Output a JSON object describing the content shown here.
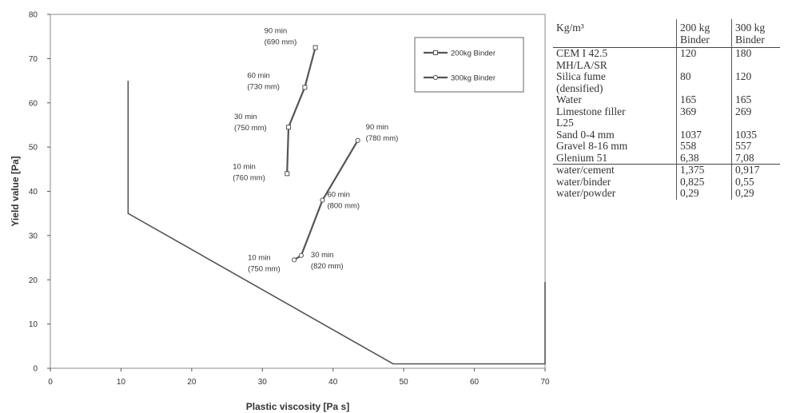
{
  "chart_data": {
    "type": "scatter",
    "xlabel": "Plastic viscosity [Pa s]",
    "ylabel": "Yield value [Pa]",
    "xlim": [
      0,
      70
    ],
    "ylim": [
      0,
      80
    ],
    "x_ticks": [
      "0",
      "10",
      "20",
      "30",
      "40",
      "50",
      "60",
      "70"
    ],
    "y_ticks": [
      "0",
      "10",
      "20",
      "30",
      "40",
      "50",
      "60",
      "70",
      "80"
    ],
    "grid": false,
    "legend_position": "top-right",
    "region_polygon": [
      [
        11,
        65
      ],
      [
        11,
        35
      ],
      [
        48.5,
        1
      ],
      [
        70,
        1
      ],
      [
        70,
        19.5
      ]
    ],
    "series": [
      {
        "name": "200kg Binder",
        "points": [
          {
            "x": 33.5,
            "y": 44,
            "label": [
              "10 min",
              "(760 mm)"
            ]
          },
          {
            "x": 33.7,
            "y": 54.5,
            "label": [
              "30 min",
              "(750 mm)"
            ]
          },
          {
            "x": 36,
            "y": 63.5,
            "label": [
              "60 min",
              "(730 mm)"
            ]
          },
          {
            "x": 37.5,
            "y": 72.5,
            "label": [
              "90 min",
              "(690 mm)"
            ]
          }
        ]
      },
      {
        "name": "300kg Binder",
        "points": [
          {
            "x": 34.5,
            "y": 24.5,
            "label": [
              "10 min",
              "(750 mm)"
            ]
          },
          {
            "x": 35.5,
            "y": 25.5,
            "label": [
              "30 min",
              "(820 mm)"
            ]
          },
          {
            "x": 38.5,
            "y": 38,
            "label": [
              "60 min",
              "(800 mm)"
            ]
          },
          {
            "x": 43.5,
            "y": 51.5,
            "label": [
              "90 min",
              "(780 mm)"
            ]
          }
        ]
      }
    ]
  },
  "table": {
    "headers": [
      "Kg/m³",
      "200 kg\nBinder",
      "300 kg\nBinder"
    ],
    "rows": [
      [
        "CEM I 42.5\nMH/LA/SR",
        "120",
        "180"
      ],
      [
        "Silica fume\n(densified)",
        "80",
        "120"
      ],
      [
        "Water",
        "165",
        "165"
      ],
      [
        "Limestone filler\nL25",
        "369",
        "269"
      ],
      [
        "Sand 0-4 mm",
        "1037",
        "1035"
      ],
      [
        "Gravel 8-16 mm",
        "558",
        "557"
      ],
      [
        "Glenium 51",
        "6,38",
        "7,08"
      ]
    ],
    "ratio_rows": [
      [
        "water/cement",
        "1,375",
        "0,917"
      ],
      [
        "water/binder",
        "0,825",
        "0,55"
      ],
      [
        "water/powder",
        "0,29",
        "0,29"
      ]
    ]
  }
}
